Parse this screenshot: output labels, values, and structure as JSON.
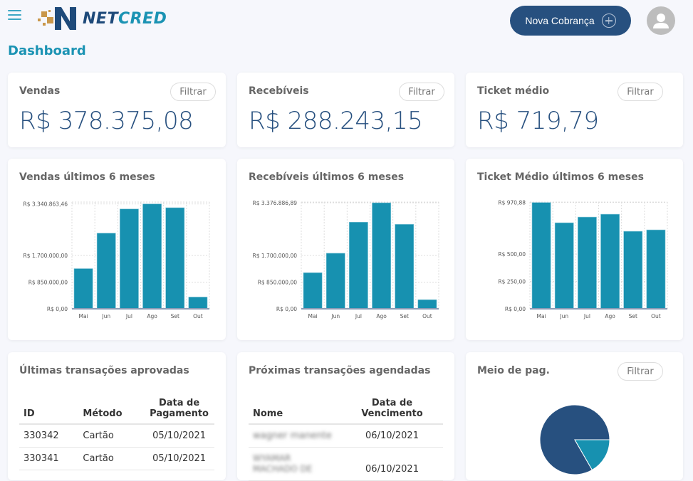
{
  "header": {
    "brand": {
      "part1": "NET",
      "part2": "CRED"
    },
    "new_charge_label": "Nova Cobrança",
    "page_title": "Dashboard"
  },
  "colors": {
    "primary": "#27507f",
    "accent": "#1b93b3",
    "bar": "#1791b0",
    "background": "#f6f7fc"
  },
  "stats": [
    {
      "title": "Vendas",
      "value": "R$ 378.375,08",
      "filter_label": "Filtrar"
    },
    {
      "title": "Recebíveis",
      "value": "R$ 288.243,15",
      "filter_label": "Filtrar"
    },
    {
      "title": "Ticket médio",
      "value": "R$ 719,79",
      "filter_label": "Filtrar"
    }
  ],
  "chart_data": [
    {
      "type": "bar",
      "title": "Vendas últimos 6 meses",
      "categories": [
        "Mai",
        "Jun",
        "Jul",
        "Ago",
        "Set",
        "Out"
      ],
      "values": [
        1280000,
        2410000,
        3180000,
        3340863.46,
        3220000,
        375000
      ],
      "ylim": [
        0,
        3400000
      ],
      "yticks": [
        0,
        850000,
        1700000,
        3340863.46
      ],
      "ytick_labels": [
        "R$ 0,00",
        "R$ 850.000,00",
        "R$ 1.700.000,00",
        "R$ 3.340.863,46"
      ],
      "grid": true
    },
    {
      "type": "bar",
      "title": "Recebíveis últimos 6 meses",
      "categories": [
        "Mai",
        "Jun",
        "Jul",
        "Ago",
        "Set",
        "Out"
      ],
      "values": [
        1150000,
        1770000,
        2760000,
        3376886.89,
        2690000,
        290000
      ],
      "ylim": [
        0,
        3400000
      ],
      "yticks": [
        0,
        850000,
        1700000,
        3376886.89
      ],
      "ytick_labels": [
        "R$ 0,00",
        "R$ 850.000,00",
        "R$ 1.700.000,00",
        "R$ 3.376.886,89"
      ],
      "grid": true
    },
    {
      "type": "bar",
      "title": "Ticket Médio últimos 6 meses",
      "categories": [
        "Mai",
        "Jun",
        "Jul",
        "Ago",
        "Set",
        "Out"
      ],
      "values": [
        970.88,
        786,
        838,
        864,
        708,
        721
      ],
      "ylim": [
        0,
        975
      ],
      "yticks": [
        0,
        250,
        500,
        970.88
      ],
      "ytick_labels": [
        "R$ 0,00",
        "R$ 250,00",
        "R$ 500,00",
        "R$ 970,88"
      ],
      "grid": true
    },
    {
      "type": "pie",
      "title": "Meio de pag.",
      "values": [
        83.3,
        16.7
      ],
      "colors": [
        "#27507f",
        "#1791b0"
      ]
    }
  ],
  "pie_card": {
    "title": "Meio de pag.",
    "filter_label": "Filtrar"
  },
  "approved": {
    "title": "Últimas transações aprovadas",
    "headers": [
      "ID",
      "Método",
      "Data de Pagamento"
    ],
    "rows": [
      [
        "330342",
        "Cartão",
        "05/10/2021"
      ],
      [
        "330341",
        "Cartão",
        "05/10/2021"
      ]
    ]
  },
  "scheduled": {
    "title": "Próximas transações agendadas",
    "headers": [
      "Nome",
      "Data de Vencimento"
    ],
    "rows": [
      [
        "wagner manente",
        "06/10/2021"
      ],
      [
        "WYAMAR MACHADO DE",
        "06/10/2021"
      ]
    ]
  }
}
